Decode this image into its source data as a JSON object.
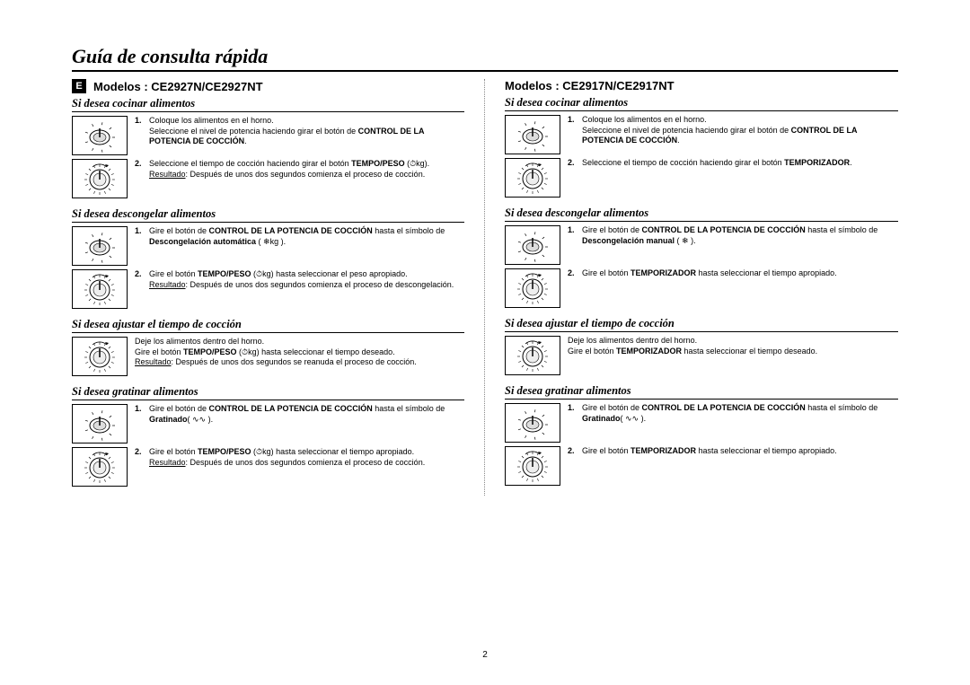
{
  "pageTitle": "Guía de consulta rápida",
  "pageNumber": "2",
  "langBadge": "E",
  "left": {
    "model": "Modelos : CE2927N/CE2927NT",
    "sections": [
      {
        "title": "Si desea cocinar alimentos",
        "steps": [
          {
            "num": "1.",
            "dial": "power",
            "html": "Coloque los alimentos en el horno.<br>Seleccione el nivel de potencia haciendo girar el botón de <b>CONTROL DE LA POTENCIA DE COCCIÓN</b>."
          },
          {
            "num": "2.",
            "dial": "timer",
            "html": "Seleccione el tiempo de cocción haciendo girar el botón <b>TEMPO/PESO</b> (⏱︎kg).<br><u>Resultado</u>: Después de unos dos segundos comienza el proceso de cocción."
          }
        ]
      },
      {
        "title": "Si desea descongelar alimentos",
        "steps": [
          {
            "num": "1.",
            "dial": "power",
            "html": "Gire el botón de <b>CONTROL DE LA POTENCIA DE COCCIÓN</b> hasta el símbolo de <b>Descongelación automática</b> ( ❄︎kg )."
          },
          {
            "num": "2.",
            "dial": "timer",
            "html": "Gire el botón <b>TEMPO/PESO</b> (⏱︎kg) hasta seleccionar el peso apropiado.<br><u>Resultado</u>: Después de unos dos segundos comienza el proceso de descongelación."
          }
        ]
      },
      {
        "title": "Si desea ajustar el tiempo de cocción",
        "steps": [
          {
            "num": "",
            "dial": "timer",
            "html": "Deje los alimentos dentro del horno.<br>Gire el botón <b>TEMPO/PESO</b> (⏱︎kg) hasta seleccionar el tiempo deseado.<br><u>Resultado</u>: Después de unos dos segundos se reanuda el proceso de cocción."
          }
        ]
      },
      {
        "title": "Si desea gratinar alimentos",
        "steps": [
          {
            "num": "1.",
            "dial": "power",
            "html": "Gire el botón de <b>CONTROL DE LA POTENCIA DE COCCIÓN</b> hasta el símbolo de <b>Gratinado</b>( ∿∿ )."
          },
          {
            "num": "2.",
            "dial": "timer",
            "html": "Gire el botón <b>TEMPO/PESO</b> (⏱︎kg) hasta seleccionar el tiempo apropiado.<br><u>Resultado</u>: Después de unos dos segundos comienza el proceso de cocción."
          }
        ]
      }
    ]
  },
  "right": {
    "model": "Modelos : CE2917N/CE2917NT",
    "sections": [
      {
        "title": "Si desea cocinar alimentos",
        "steps": [
          {
            "num": "1.",
            "dial": "power2",
            "html": "Coloque los alimentos en el horno.<br>Seleccione el nivel de potencia haciendo girar el botón de <b>CONTROL DE LA POTENCIA DE COCCIÓN</b>."
          },
          {
            "num": "2.",
            "dial": "timer2",
            "html": "Seleccione el tiempo de cocción haciendo girar el botón <b>TEMPORIZADOR</b>."
          }
        ]
      },
      {
        "title": "Si desea descongelar alimentos",
        "steps": [
          {
            "num": "1.",
            "dial": "power2",
            "html": "Gire el botón de <b>CONTROL DE LA POTENCIA DE COCCIÓN</b> hasta el símbolo de <b>Descongelación manual</b> ( ❄︎ )."
          },
          {
            "num": "2.",
            "dial": "timer2",
            "html": "Gire el botón <b>TEMPORIZADOR</b> hasta seleccionar el tiempo apropiado."
          }
        ]
      },
      {
        "title": "Si desea ajustar el tiempo de cocción",
        "steps": [
          {
            "num": "",
            "dial": "timer2",
            "html": "Deje los alimentos dentro del horno.<br>Gire el botón <b>TEMPORIZADOR</b> hasta seleccionar el tiempo deseado."
          }
        ]
      },
      {
        "title": "Si desea gratinar alimentos",
        "steps": [
          {
            "num": "1.",
            "dial": "power2",
            "html": "Gire el botón de <b>CONTROL DE LA POTENCIA DE COCCIÓN</b> hasta el símbolo de <b>Gratinado</b>( ∿∿ )."
          },
          {
            "num": "2.",
            "dial": "timer2",
            "html": "Gire el botón <b>TEMPORIZADOR</b> hasta seleccionar el tiempo apropiado."
          }
        ]
      }
    ]
  }
}
